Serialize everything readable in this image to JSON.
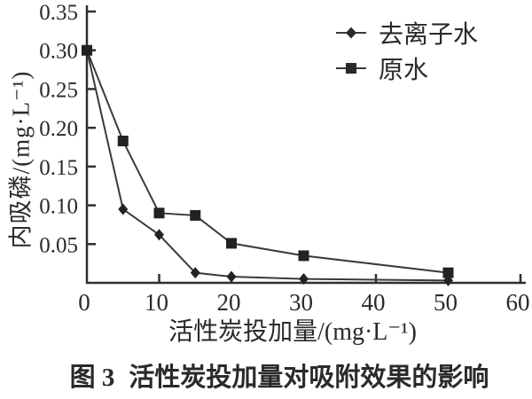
{
  "figure_caption": {
    "prefix": "图 3",
    "text": "活性炭投加量对吸附效果的影响"
  },
  "chart_data": {
    "type": "line",
    "title": "",
    "xlabel": "活性炭投加量/(mg·L⁻¹)",
    "ylabel": "内吸磷/(mg·L⁻¹)",
    "xlim": [
      0,
      60
    ],
    "ylim": [
      0,
      0.35
    ],
    "x_tick_labels": [
      "0",
      "10",
      "20",
      "30",
      "40",
      "50",
      "60"
    ],
    "y_tick_labels": [
      "0.05",
      "0.10",
      "0.15",
      "0.20",
      "0.25",
      "0.30",
      "0.35"
    ],
    "grid": false,
    "legend_position": "top-right",
    "axis_color": "#2f2f2f",
    "text_color": "#2a2a2a",
    "series": [
      {
        "name": "去离子水",
        "marker": "diamond",
        "color": "#3a3a3a",
        "points": [
          [
            0,
            0.3
          ],
          [
            5,
            0.095
          ],
          [
            10,
            0.062
          ],
          [
            15,
            0.013
          ],
          [
            20,
            0.008
          ],
          [
            30,
            0.005
          ],
          [
            50,
            0.003
          ]
        ]
      },
      {
        "name": "原水",
        "marker": "square",
        "color": "#3a3a3a",
        "points": [
          [
            0,
            0.3
          ],
          [
            5,
            0.183
          ],
          [
            10,
            0.09
          ],
          [
            15,
            0.087
          ],
          [
            20,
            0.051
          ],
          [
            30,
            0.035
          ],
          [
            50,
            0.013
          ]
        ]
      }
    ]
  }
}
